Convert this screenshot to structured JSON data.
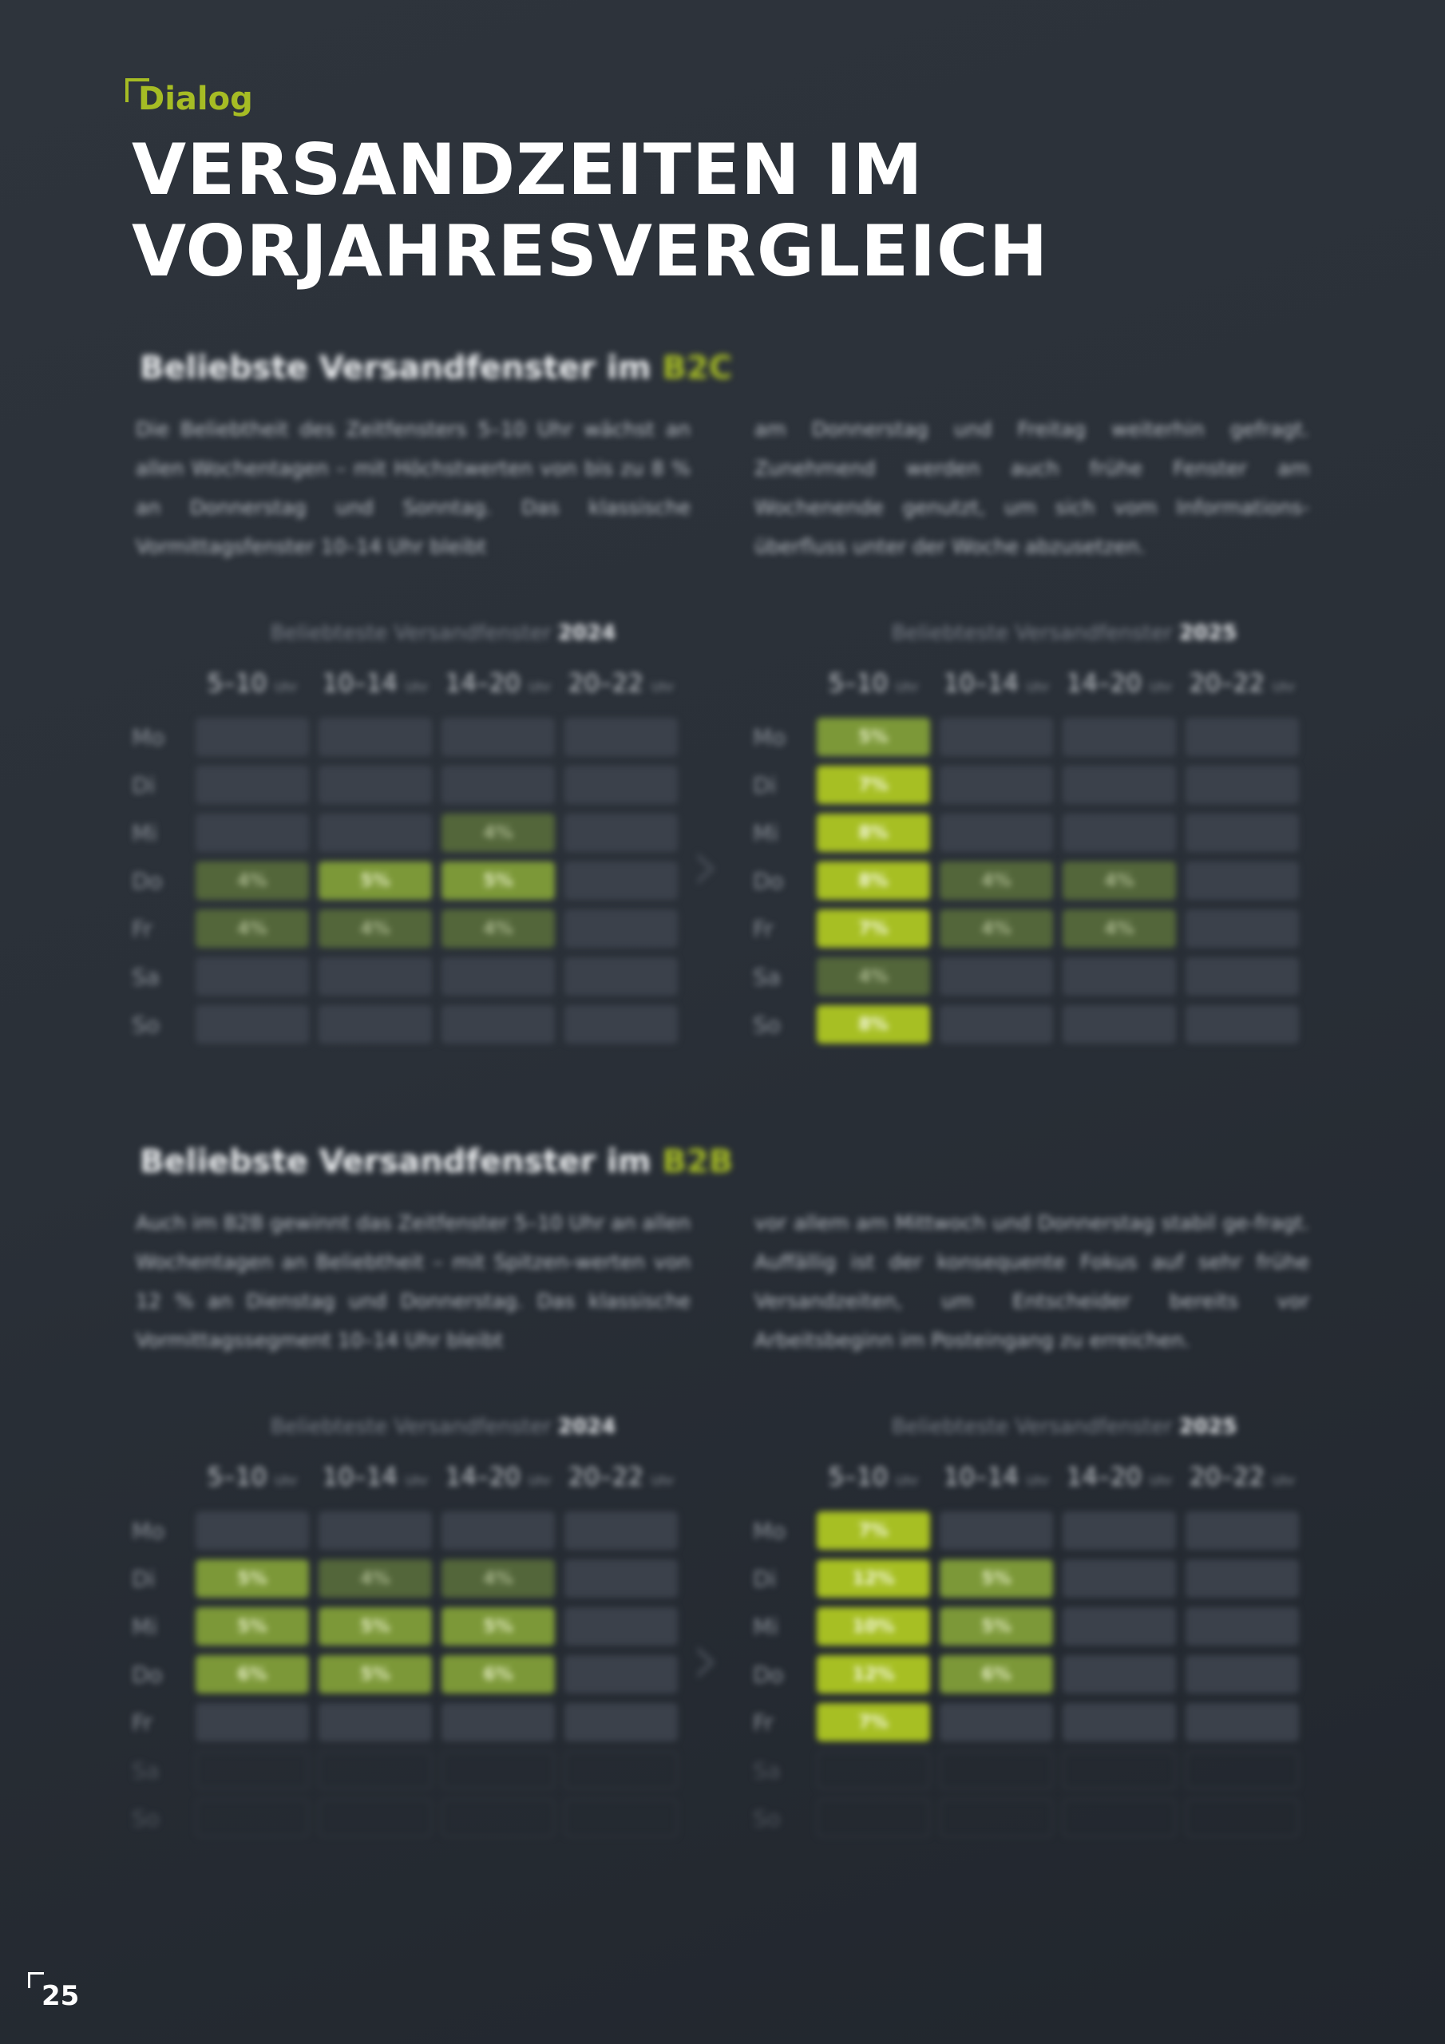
{
  "header": {
    "kicker": "Dialog",
    "title": "VERSANDZEITEN IM\nVORJAHRESVERGLEICH"
  },
  "b2c": {
    "heading_prefix": "Beliebste Versandfenster im",
    "heading_accent": "B2C",
    "text_left": "Die Beliebtheit des Zeitfensters 5–10 Uhr wächst an allen Wochentagen – mit Höchstwerten von bis zu 8 % an Donnerstag und Sonntag. Das klassische Vormittagsfenster 10–14 Uhr bleibt",
    "text_right": "am Donnerstag und Freitag weiterhin gefragt. Zunehmend werden auch frühe Fenster am Wochenende genutzt, um sich vom Informations-überfluss unter der Woche abzusetzen.",
    "table_2024": {
      "title_prefix": "Beliebteste Versandfenster",
      "title_year": "2024",
      "columns": [
        {
          "range": "5–10",
          "unit": "Uhr"
        },
        {
          "range": "10–14",
          "unit": "Uhr"
        },
        {
          "range": "14–20",
          "unit": "Uhr"
        },
        {
          "range": "20–22",
          "unit": "Uhr"
        }
      ],
      "days": [
        "Mo",
        "Di",
        "Mi",
        "Do",
        "Fr",
        "Sa",
        "So"
      ],
      "cells": [
        [
          "",
          "",
          "",
          ""
        ],
        [
          "",
          "",
          "",
          ""
        ],
        [
          "",
          "",
          "4%",
          ""
        ],
        [
          "4%",
          "5%",
          "5%",
          ""
        ],
        [
          "4%",
          "4%",
          "4%",
          ""
        ],
        [
          "",
          "",
          "",
          ""
        ],
        [
          "",
          "",
          "",
          ""
        ]
      ]
    },
    "table_2025": {
      "title_prefix": "Beliebteste Versandfenster",
      "title_year": "2025",
      "columns": [
        {
          "range": "5–10",
          "unit": "Uhr"
        },
        {
          "range": "10–14",
          "unit": "Uhr"
        },
        {
          "range": "14–20",
          "unit": "Uhr"
        },
        {
          "range": "20–22",
          "unit": "Uhr"
        }
      ],
      "days": [
        "Mo",
        "Di",
        "Mi",
        "Do",
        "Fr",
        "Sa",
        "So"
      ],
      "cells": [
        [
          "5%",
          "",
          "",
          ""
        ],
        [
          "7%",
          "",
          "",
          ""
        ],
        [
          "8%",
          "",
          "",
          ""
        ],
        [
          "8%",
          "4%",
          "4%",
          ""
        ],
        [
          "7%",
          "4%",
          "4%",
          ""
        ],
        [
          "4%",
          "",
          "",
          ""
        ],
        [
          "8%",
          "",
          "",
          ""
        ]
      ]
    }
  },
  "b2b": {
    "heading_prefix": "Beliebste Versandfenster im",
    "heading_accent": "B2B",
    "text_left": "Auch im B2B gewinnt das Zeitfenster 5–10 Uhr an allen Wochentagen an Beliebtheit – mit Spitzen-werten von 12 % an Dienstag und Donnerstag. Das klassische Vormittagssegment 10–14 Uhr bleibt",
    "text_right": "vor allem am Mittwoch und Donnerstag stabil ge-fragt. Auffällig ist der konsequente Fokus auf sehr frühe Versandzeiten, um Entscheider bereits vor Arbeitsbeginn im Posteingang zu erreichen.",
    "table_2024": {
      "title_prefix": "Beliebteste Versandfenster",
      "title_year": "2024",
      "columns": [
        {
          "range": "5–10",
          "unit": "Uhr"
        },
        {
          "range": "10–14",
          "unit": "Uhr"
        },
        {
          "range": "14–20",
          "unit": "Uhr"
        },
        {
          "range": "20–22",
          "unit": "Uhr"
        }
      ],
      "days": [
        "Mo",
        "Di",
        "Mi",
        "Do",
        "Fr",
        "Sa",
        "So"
      ],
      "cells": [
        [
          "",
          "",
          "",
          ""
        ],
        [
          "5%",
          "4%",
          "4%",
          ""
        ],
        [
          "5%",
          "5%",
          "5%",
          ""
        ],
        [
          "6%",
          "5%",
          "6%",
          ""
        ],
        [
          "",
          "",
          "",
          ""
        ],
        [
          "",
          "",
          "",
          ""
        ],
        [
          "",
          "",
          "",
          ""
        ]
      ]
    },
    "table_2025": {
      "title_prefix": "Beliebteste Versandfenster",
      "title_year": "2025",
      "columns": [
        {
          "range": "5–10",
          "unit": "Uhr"
        },
        {
          "range": "10–14",
          "unit": "Uhr"
        },
        {
          "range": "14–20",
          "unit": "Uhr"
        },
        {
          "range": "20–22",
          "unit": "Uhr"
        }
      ],
      "days": [
        "Mo",
        "Di",
        "Mi",
        "Do",
        "Fr",
        "Sa",
        "So"
      ],
      "cells": [
        [
          "7%",
          "",
          "",
          ""
        ],
        [
          "12%",
          "5%",
          "",
          ""
        ],
        [
          "10%",
          "5%",
          "",
          ""
        ],
        [
          "12%",
          "6%",
          "",
          ""
        ],
        [
          "7%",
          "",
          "",
          ""
        ],
        [
          "",
          "",
          "",
          ""
        ],
        [
          "",
          "",
          "",
          ""
        ]
      ]
    }
  },
  "footer": {
    "page_number": "25"
  },
  "colors": {
    "accent": "#a6bc24",
    "background": "#2a3038",
    "cell_empty": "#3b414b",
    "cell_low": "#53663a",
    "cell_mid": "#7c9838",
    "cell_high": "#a7bf23"
  },
  "icons": {
    "arrow": "chevron-right-icon"
  }
}
